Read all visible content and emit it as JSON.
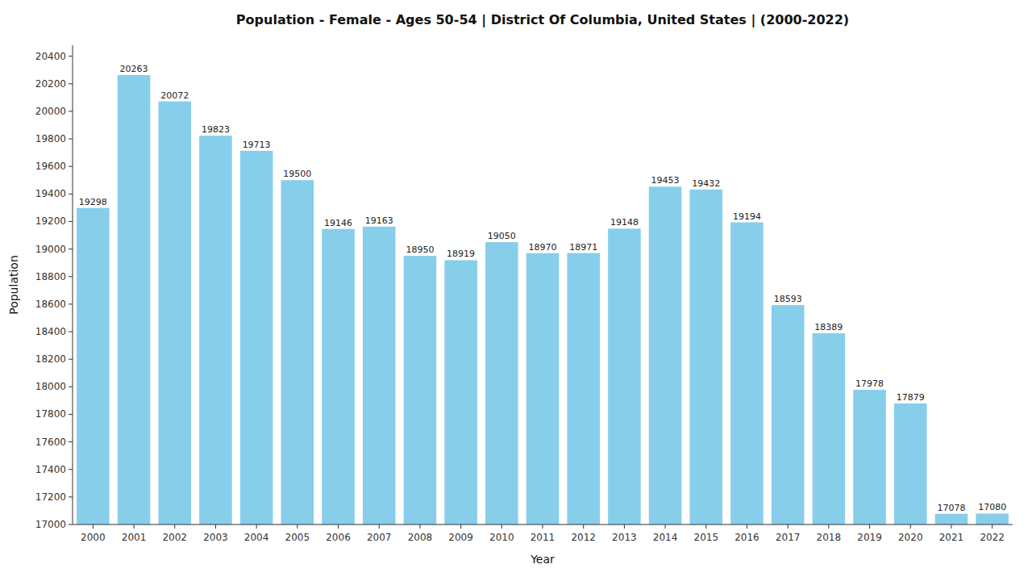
{
  "chart_data": {
    "type": "bar",
    "title": "Population - Female - Ages 50-54 | District Of Columbia, United States |  (2000-2022)",
    "xlabel": "Year",
    "ylabel": "Population",
    "categories": [
      "2000",
      "2001",
      "2002",
      "2003",
      "2004",
      "2005",
      "2006",
      "2007",
      "2008",
      "2009",
      "2010",
      "2011",
      "2012",
      "2013",
      "2014",
      "2015",
      "2016",
      "2017",
      "2018",
      "2019",
      "2020",
      "2021",
      "2022"
    ],
    "values": [
      19298,
      20263,
      20072,
      19823,
      19713,
      19500,
      19146,
      19163,
      18950,
      18919,
      19050,
      18970,
      18971,
      19148,
      19453,
      19432,
      19194,
      18593,
      18389,
      17978,
      17879,
      17078,
      17080
    ],
    "color": "#87CEEB",
    "ylim": [
      17000,
      20480
    ],
    "yticks": [
      17000,
      17200,
      17400,
      17600,
      17800,
      18000,
      18200,
      18400,
      18600,
      18800,
      19000,
      19200,
      19400,
      19600,
      19800,
      20000,
      20200,
      20400
    ],
    "grid": false,
    "data_labels": true
  }
}
